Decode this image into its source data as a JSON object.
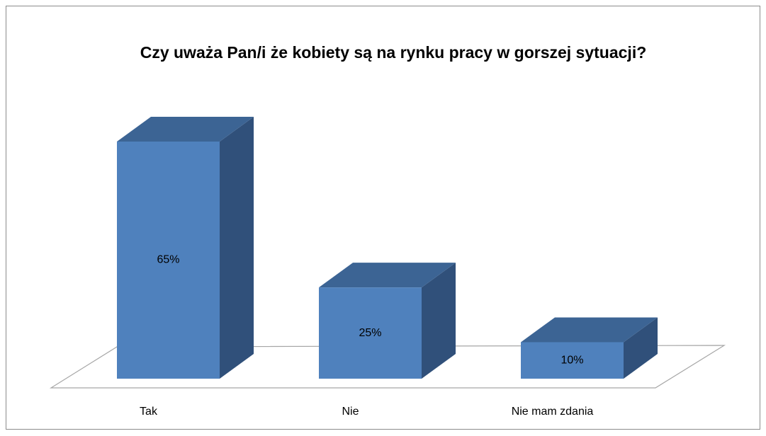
{
  "chart_data": {
    "type": "bar3d",
    "title": "Czy uważa Pan/i że kobiety są na rynku pracy w gorszej sytuacji?",
    "categories": [
      "Tak",
      "Nie",
      "Nie mam zdania"
    ],
    "values": [
      65,
      25,
      10
    ],
    "value_labels": [
      "65%",
      "25%",
      "10%"
    ],
    "color": "#4f81bd"
  }
}
